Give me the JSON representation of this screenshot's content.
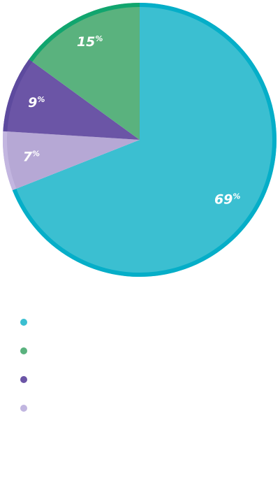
{
  "chart_data": {
    "type": "pie",
    "value_suffix": "%",
    "slices": [
      {
        "label": "",
        "value": 69,
        "display": "69",
        "color": "#3bbfd1",
        "edge_color": "#05aec8"
      },
      {
        "label": "",
        "value": 7,
        "display": "7",
        "color": "#b6a8d5",
        "edge_color": "#c3b6e0"
      },
      {
        "label": "",
        "value": 9,
        "display": "9",
        "color": "#6b55a6",
        "edge_color": "#5d4a9e"
      },
      {
        "label": "",
        "value": 15,
        "display": "15",
        "color": "#5ab27e",
        "edge_color": "#11a56e"
      }
    ],
    "legend": [
      {
        "label": "",
        "color": "#3bbfd1"
      },
      {
        "label": "",
        "color": "#5ab27e"
      },
      {
        "label": "",
        "color": "#6b55a6"
      },
      {
        "label": "",
        "color": "#c1b6e0"
      }
    ]
  }
}
